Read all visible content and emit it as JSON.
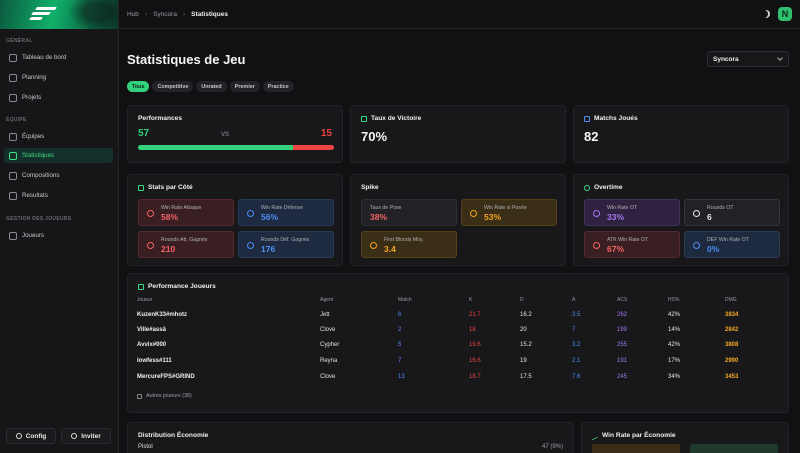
{
  "sidebar": {
    "sections": {
      "general": "GÉNÉRAL",
      "equipe": "ÉQUIPE",
      "gestion": "GESTION DES JOUEURS"
    },
    "items": [
      {
        "label": "Tableau de bord",
        "icon": "layout-icon"
      },
      {
        "label": "Planning",
        "icon": "calendar-icon"
      },
      {
        "label": "Projets",
        "icon": "box-icon"
      },
      {
        "label": "Équipes",
        "icon": "users-icon"
      },
      {
        "label": "Statistiques",
        "icon": "chart-icon"
      },
      {
        "label": "Compositions",
        "icon": "target-icon"
      },
      {
        "label": "Resultats",
        "icon": "file-icon"
      },
      {
        "label": "Joueurs",
        "icon": "user-icon"
      }
    ],
    "config_label": "Config",
    "invite_label": "Inviter"
  },
  "breadcrumb": [
    "Hub",
    "Syncora",
    "Statistiques"
  ],
  "user_initial": "N",
  "page": {
    "title": "Statistiques de Jeu",
    "team_select": "Syncora",
    "tabs": [
      "Tous",
      "Competitive",
      "Unrated",
      "Premier",
      "Practice"
    ]
  },
  "performances": {
    "title": "Performances",
    "wins": "57",
    "vs": "VS",
    "losses": "15",
    "win_fraction": 0.79
  },
  "win_rate": {
    "title": "Taux de Victoire",
    "value": "70%"
  },
  "matches": {
    "title": "Matchs Joués",
    "value": "82"
  },
  "side_stats": {
    "title": "Stats par Côté",
    "atk_wr_label": "Win Rate Attaque",
    "atk_wr": "58%",
    "def_wr_label": "Win Rate Défense",
    "def_wr": "56%",
    "atk_rounds_label": "Rounds Att. Gagnés",
    "atk_rounds": "210",
    "def_rounds_label": "Rounds Déf. Gagnés",
    "def_rounds": "176"
  },
  "spike": {
    "title": "Spike",
    "plant_label": "Taux de Pose",
    "plant": "38%",
    "wr_plant_label": "Win Rate si Posée",
    "wr_plant": "53%",
    "fb_label": "First Bloods Moy.",
    "fb": "3.4"
  },
  "overtime": {
    "title": "Overtime",
    "wr_ot_label": "Win Rate OT",
    "wr_ot": "33%",
    "rounds_ot_label": "Rounds OT",
    "rounds_ot": "6",
    "atk_ot_label": "ATK Win Rate OT",
    "atk_ot": "67%",
    "def_ot_label": "DEF Win Rate OT",
    "def_ot": "0%"
  },
  "players": {
    "title": "Performance Joueurs",
    "headers": [
      "Joueur",
      "Agent",
      "Match",
      "K",
      "D",
      "A",
      "ACS",
      "HS%",
      "DMG"
    ],
    "rows": [
      [
        "KuzenK33#mhotz",
        "Jett",
        "6",
        "21.7",
        "16.2",
        "3.5",
        "262",
        "42%",
        "3834"
      ],
      [
        "Ville#assâ",
        "Clove",
        "2",
        "18",
        "20",
        "7",
        "199",
        "14%",
        "2842"
      ],
      [
        "Avvix#000",
        "Cypher",
        "5",
        "19.6",
        "15.2",
        "3.2",
        "255",
        "42%",
        "3808"
      ],
      [
        "lowfess#111",
        "Reyna",
        "7",
        "16.6",
        "19",
        "2.1",
        "191",
        "17%",
        "2990"
      ],
      [
        "MercureFPS#GRIND",
        "Clove",
        "13",
        "18.7",
        "17.5",
        "7.6",
        "245",
        "34%",
        "3453"
      ]
    ],
    "more_label": "Autres joueurs (38)"
  },
  "economy": {
    "title": "Distribution Économie",
    "first_label": "Pistol",
    "first_value": "47 (9%)"
  },
  "eco_wr": {
    "title": "Win Rate par Économie"
  },
  "colors": {
    "accent": "#34d17c",
    "red": "#f56565",
    "blue": "#4f8df5",
    "amber": "#f5a524",
    "purple": "#a478f5"
  }
}
